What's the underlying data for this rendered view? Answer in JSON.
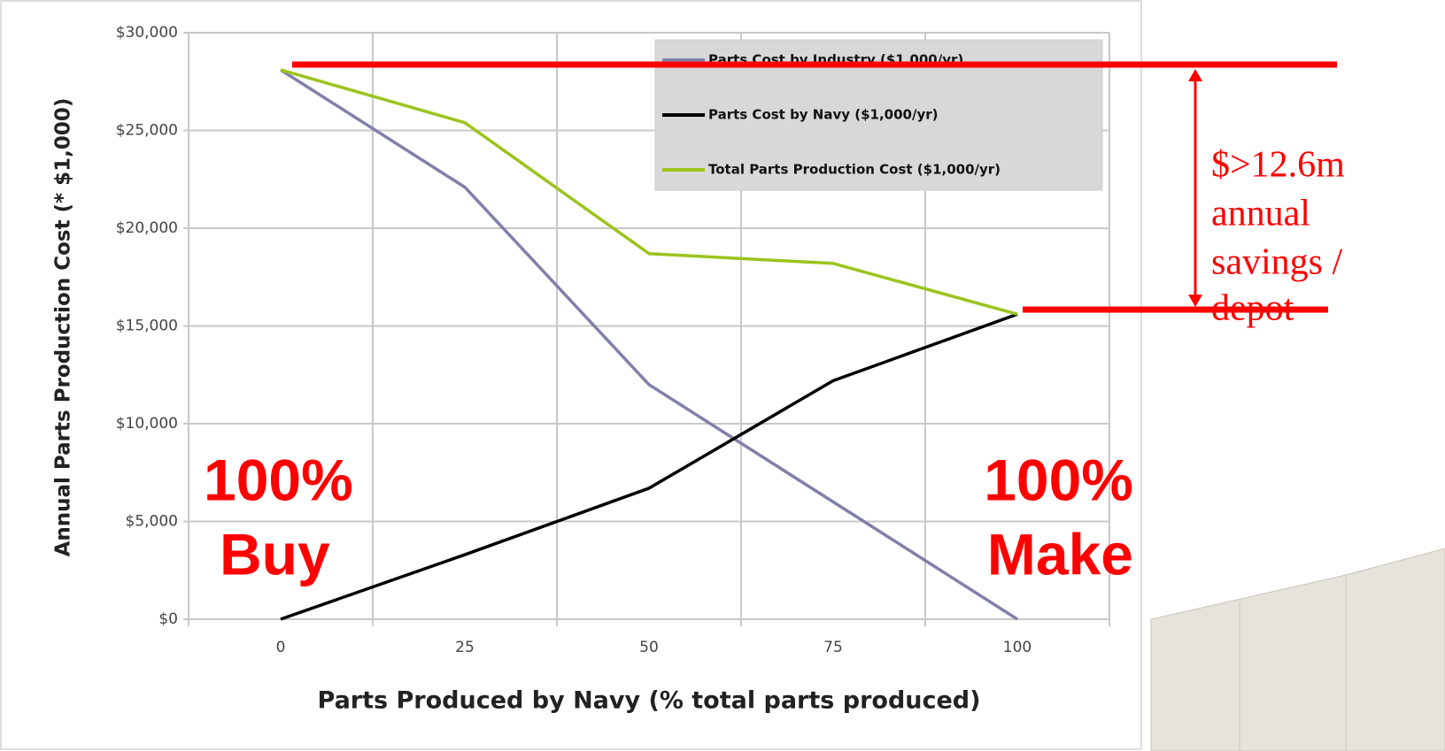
{
  "chart_data": {
    "type": "line",
    "categories": [
      "0",
      "25",
      "50",
      "75",
      "100"
    ],
    "x_label": "Parts Produced by Navy (% total parts produced)",
    "y_label": "Annual Parts Production Cost (* $1,000)",
    "ylim": [
      0,
      30000
    ],
    "yticks": [
      {
        "value": 0,
        "label": "$0"
      },
      {
        "value": 5000,
        "label": "$5,000"
      },
      {
        "value": 10000,
        "label": "$10,000"
      },
      {
        "value": 15000,
        "label": "$15,000"
      },
      {
        "value": 20000,
        "label": "$20,000"
      },
      {
        "value": 25000,
        "label": "$25,000"
      },
      {
        "value": 30000,
        "label": "$30,000"
      }
    ],
    "grid": true,
    "legend": "top-right",
    "series": [
      {
        "name": "Parts Cost by Industry ($1,000/yr)",
        "color": "#8080aa",
        "values": [
          28100,
          22100,
          12000,
          6000,
          0
        ]
      },
      {
        "name": "Parts Cost by Navy ($1,000/yr)",
        "color": "#000000",
        "values": [
          0,
          3300,
          6700,
          12200,
          15600
        ]
      },
      {
        "name": "Total Parts Production Cost ($1,000/yr)",
        "color": "#9bc41c",
        "values": [
          28100,
          25400,
          18700,
          18200,
          15600
        ]
      }
    ],
    "annotations": {
      "buy": [
        "100%",
        "Buy"
      ],
      "make": [
        "100%",
        "Make"
      ],
      "savings": [
        "$>12.6m",
        "annual",
        "savings /",
        "depot"
      ]
    }
  }
}
